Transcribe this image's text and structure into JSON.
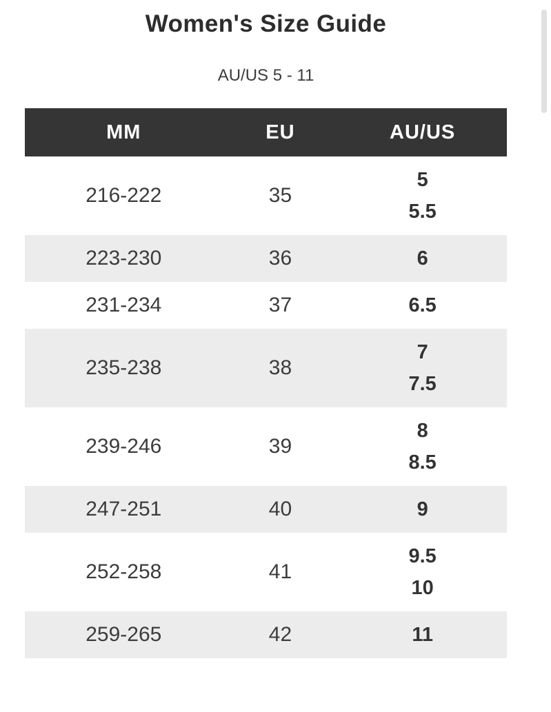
{
  "page": {
    "title": "Women's Size Guide",
    "subtitle": "AU/US 5 - 11"
  },
  "table": {
    "headers": [
      "MM",
      "EU",
      "AU/US"
    ],
    "rows": [
      {
        "mm": "216-222",
        "eu": "35",
        "auus": "5\n5.5"
      },
      {
        "mm": "223-230",
        "eu": "36",
        "auus": "6"
      },
      {
        "mm": "231-234",
        "eu": "37",
        "auus": "6.5"
      },
      {
        "mm": "235-238",
        "eu": "38",
        "auus": "7\n7.5"
      },
      {
        "mm": "239-246",
        "eu": "39",
        "auus": "8\n8.5"
      },
      {
        "mm": "247-251",
        "eu": "40",
        "auus": "9"
      },
      {
        "mm": "252-258",
        "eu": "41",
        "auus": "9.5\n10"
      },
      {
        "mm": "259-265",
        "eu": "42",
        "auus": "11"
      }
    ]
  },
  "colors": {
    "header_bg": "#353535",
    "header_text": "#ffffff",
    "row_alt_bg": "#ececec",
    "title_text": "#2d2d2d",
    "body_text": "#3c3c3c",
    "bold_text": "#333333",
    "scrollbar_thumb": "#e0e0e0"
  }
}
